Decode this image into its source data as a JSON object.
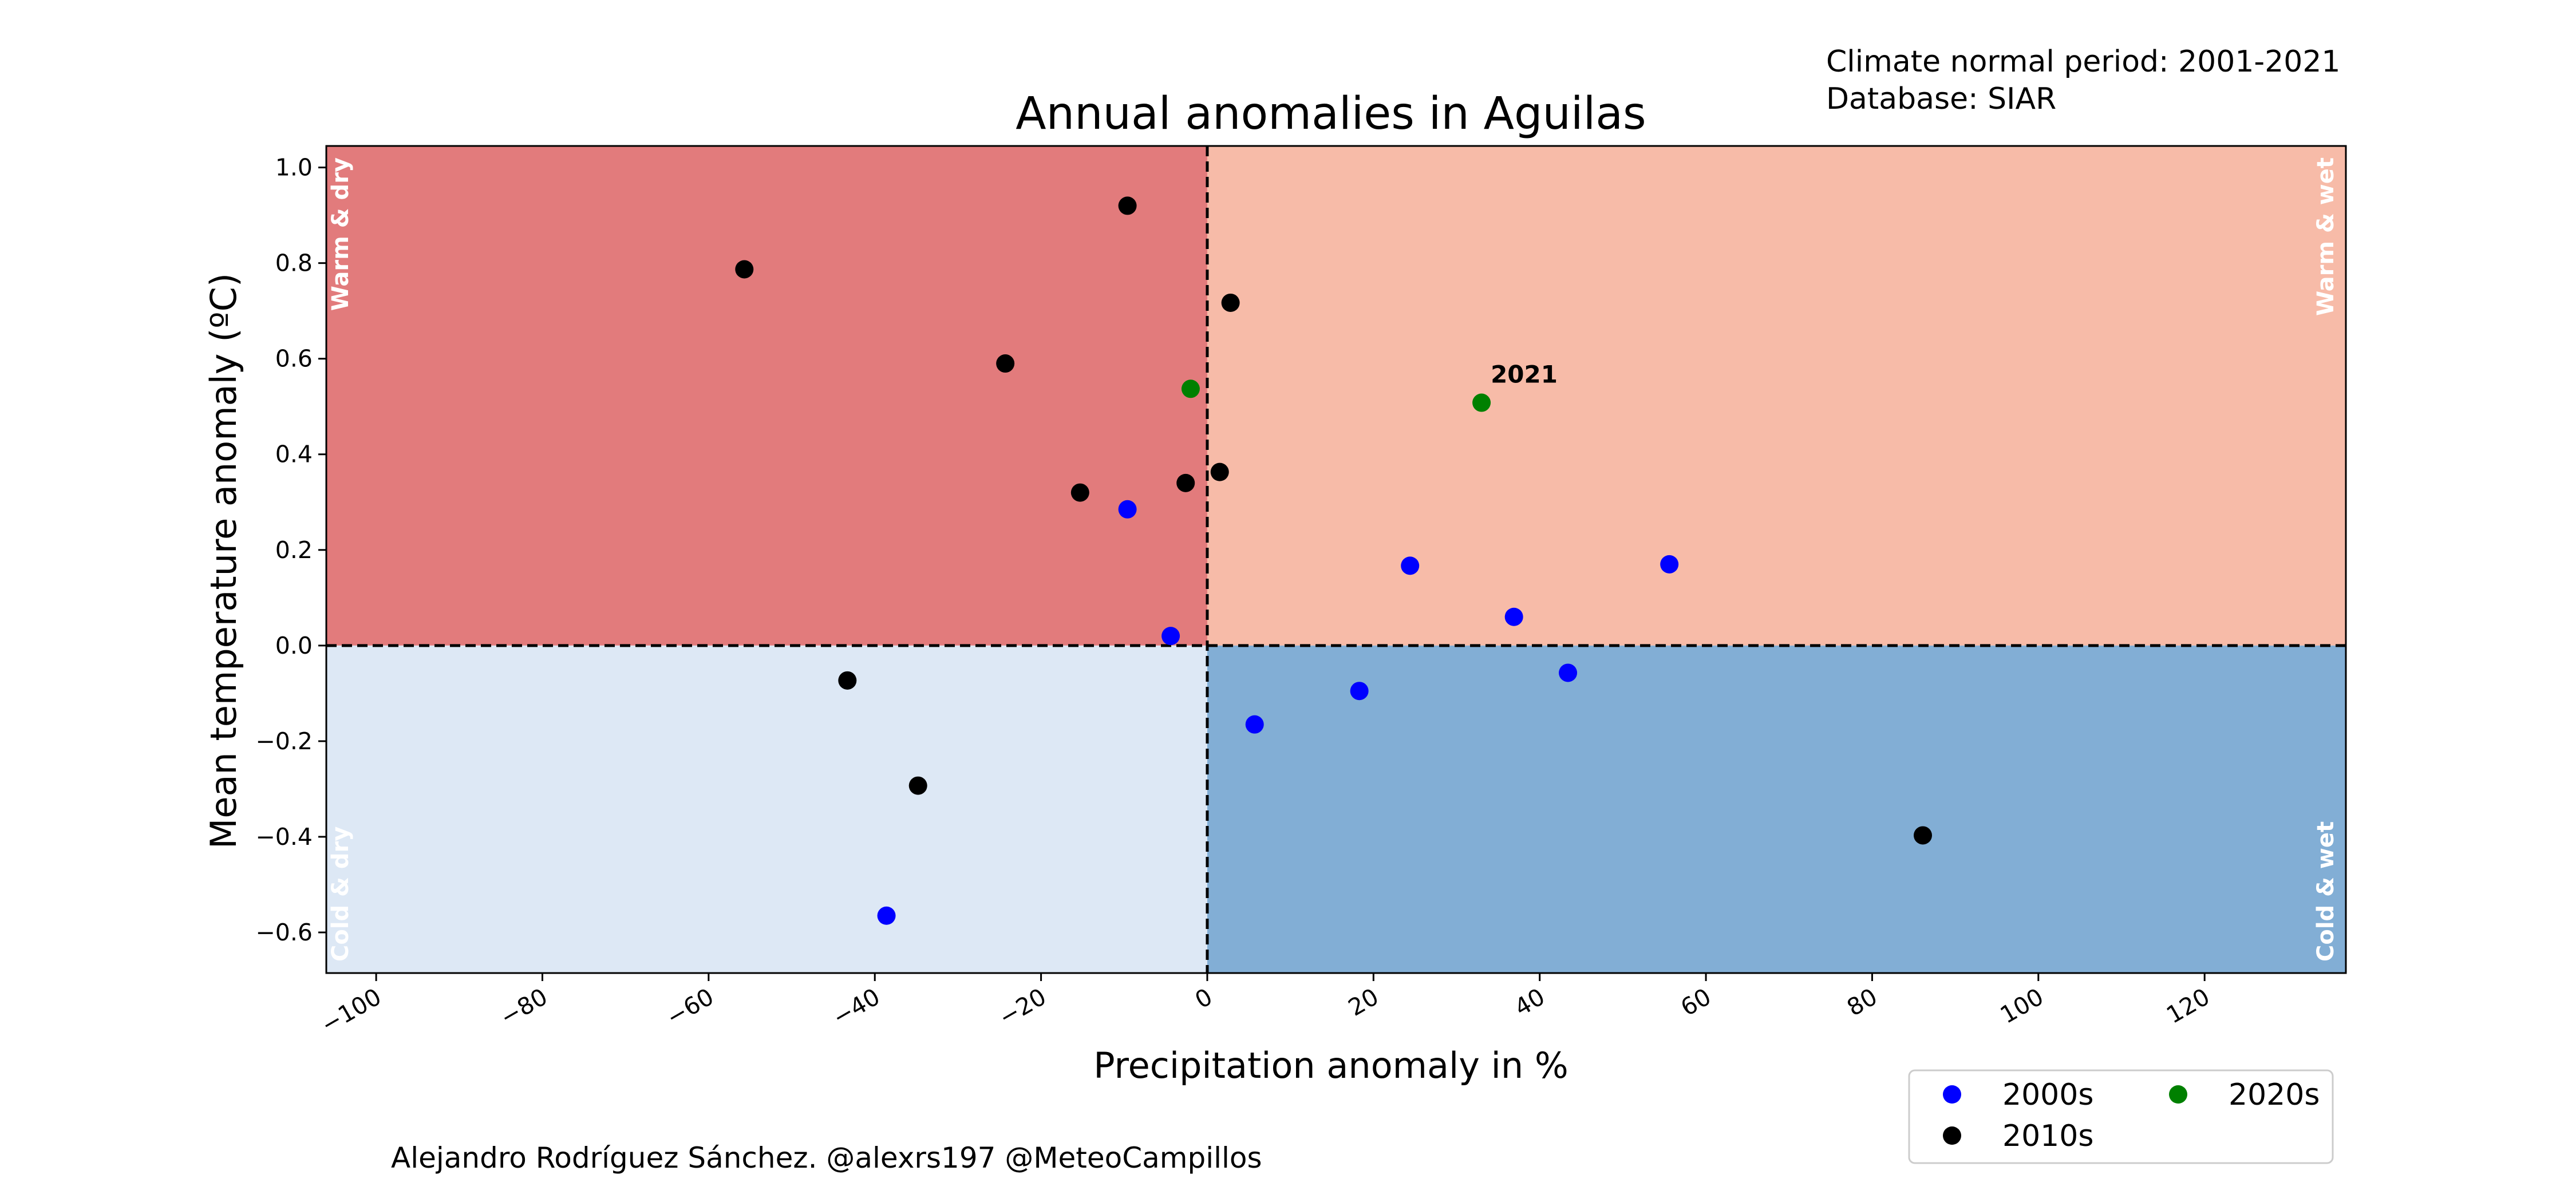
{
  "header": {
    "title": "Annual anomalies in Aguilas",
    "note_line1": "Climate normal period: 2001-2021",
    "note_line2": "Database: SIAR"
  },
  "footer": {
    "credit": "Alejandro Rodríguez Sánchez. @alexrs197 @MeteoCampillos"
  },
  "chart_data": {
    "type": "scatter",
    "title": "Annual anomalies in Aguilas",
    "xlabel": "Precipitation anomaly in %",
    "ylabel": "Mean temperature anomaly (ºC)",
    "xlim": [
      -106,
      137
    ],
    "ylim": [
      -0.685,
      1.045
    ],
    "x_ticks": [
      -100,
      -80,
      -60,
      -40,
      -20,
      0,
      20,
      40,
      60,
      80,
      100,
      120
    ],
    "x_tick_labels": [
      "−100",
      "−80",
      "−60",
      "−40",
      "−20",
      "0",
      "20",
      "40",
      "60",
      "80",
      "100",
      "120"
    ],
    "y_ticks": [
      1.0,
      0.8,
      0.6,
      0.4,
      0.2,
      0.0,
      -0.2,
      -0.4,
      -0.6
    ],
    "y_tick_labels": [
      "1.0",
      "0.8",
      "0.6",
      "0.4",
      "0.2",
      "0.0",
      "−0.2",
      "−0.4",
      "−0.6"
    ],
    "grid": false,
    "reference_lines": {
      "x": 0,
      "y": 0,
      "style": "dashed"
    },
    "quadrants": [
      {
        "label": "Warm & dry",
        "color": "#e27b7c",
        "position": "top-left"
      },
      {
        "label": "Warm & wet",
        "color": "#f7bba8",
        "position": "top-right"
      },
      {
        "label": "Cold & dry",
        "color": "#dde8f5",
        "position": "bottom-left"
      },
      {
        "label": "Cold & wet",
        "color": "#82aed5",
        "position": "bottom-right"
      }
    ],
    "series": [
      {
        "name": "2000s",
        "color": "#0000ff",
        "points": [
          {
            "x": -9.6,
            "y": 0.285
          },
          {
            "x": -4.4,
            "y": 0.02
          },
          {
            "x": 5.7,
            "y": -0.165
          },
          {
            "x": 18.3,
            "y": -0.095
          },
          {
            "x": 24.4,
            "y": 0.167
          },
          {
            "x": 36.9,
            "y": 0.06
          },
          {
            "x": 43.4,
            "y": -0.057
          },
          {
            "x": 55.6,
            "y": 0.17
          },
          {
            "x": -38.6,
            "y": -0.565
          }
        ]
      },
      {
        "name": "2010s",
        "color": "#000000",
        "points": [
          {
            "x": -9.6,
            "y": 0.92
          },
          {
            "x": -55.7,
            "y": 0.787
          },
          {
            "x": 2.8,
            "y": 0.717
          },
          {
            "x": -24.3,
            "y": 0.59
          },
          {
            "x": -15.3,
            "y": 0.32
          },
          {
            "x": -2.6,
            "y": 0.34
          },
          {
            "x": 1.5,
            "y": 0.363
          },
          {
            "x": -43.3,
            "y": -0.073
          },
          {
            "x": -34.8,
            "y": -0.293
          },
          {
            "x": 86.1,
            "y": -0.397
          }
        ]
      },
      {
        "name": "2020s",
        "color": "#008000",
        "points": [
          {
            "x": -2.0,
            "y": 0.537
          },
          {
            "x": 33.0,
            "y": 0.508,
            "label": "2021"
          }
        ]
      }
    ],
    "legend": {
      "position": "bottom-right",
      "columns": 2
    }
  }
}
